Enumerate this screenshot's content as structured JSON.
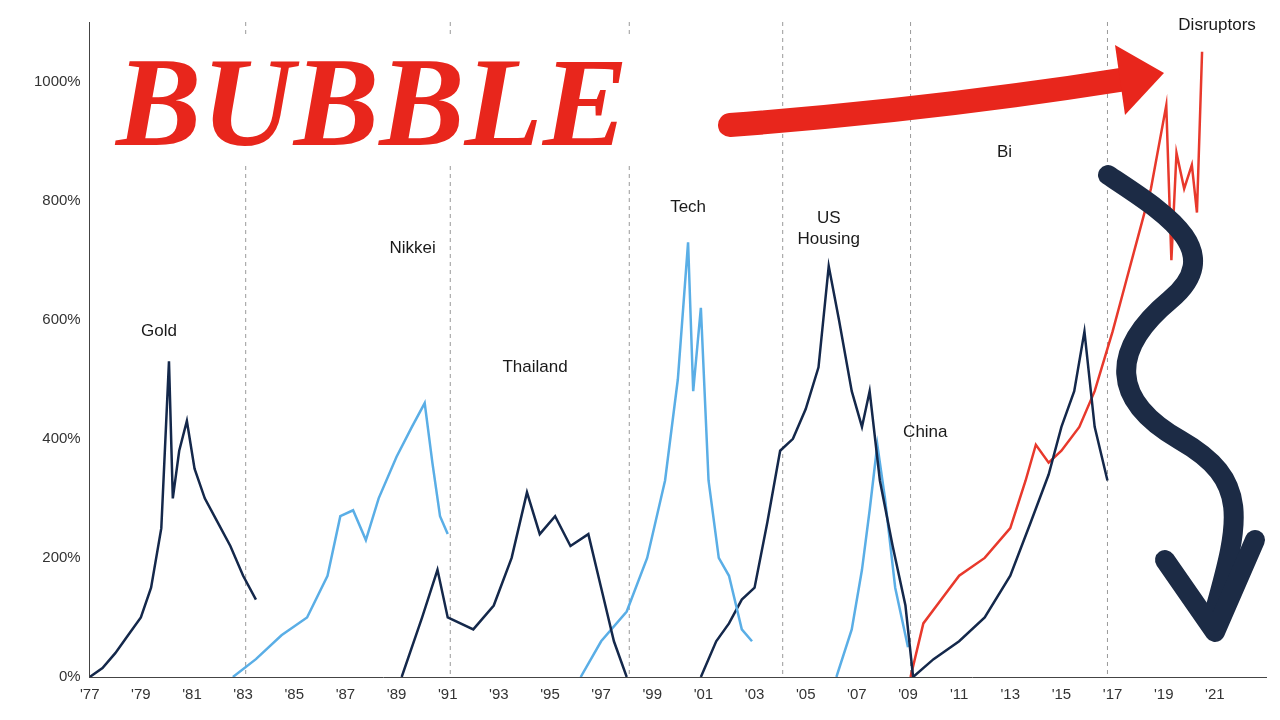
{
  "chart_data": {
    "type": "line",
    "annotations": [
      "BUBBLE"
    ],
    "xlim": [
      1977,
      2023
    ],
    "xticks": [
      {
        "value": 1977,
        "label": "'77"
      },
      {
        "value": 1979,
        "label": "'79"
      },
      {
        "value": 1981,
        "label": "'81"
      },
      {
        "value": 1983,
        "label": "'83"
      },
      {
        "value": 1985,
        "label": "'85"
      },
      {
        "value": 1987,
        "label": "'87"
      },
      {
        "value": 1989,
        "label": "'89"
      },
      {
        "value": 1991,
        "label": "'91"
      },
      {
        "value": 1993,
        "label": "'93"
      },
      {
        "value": 1995,
        "label": "'95"
      },
      {
        "value": 1997,
        "label": "'97"
      },
      {
        "value": 1999,
        "label": "'99"
      },
      {
        "value": 2001,
        "label": "'01"
      },
      {
        "value": 2003,
        "label": "'03"
      },
      {
        "value": 2005,
        "label": "'05"
      },
      {
        "value": 2007,
        "label": "'07"
      },
      {
        "value": 2009,
        "label": "'09"
      },
      {
        "value": 2011,
        "label": "'11"
      },
      {
        "value": 2013,
        "label": "'13"
      },
      {
        "value": 2015,
        "label": "'15"
      },
      {
        "value": 2017,
        "label": "'17"
      },
      {
        "value": 2019,
        "label": "'19"
      },
      {
        "value": 2021,
        "label": "'21"
      }
    ],
    "ylim": [
      0,
      1100
    ],
    "yticks": [
      {
        "value": 0,
        "label": "0%"
      },
      {
        "value": 200,
        "label": "200%"
      },
      {
        "value": 400,
        "label": "400%"
      },
      {
        "value": 600,
        "label": "600%"
      },
      {
        "value": 800,
        "label": "800%"
      },
      {
        "value": 1000,
        "label": "1000%"
      }
    ],
    "grid": false,
    "dividers": [
      1983.1,
      1991.1,
      1998.1,
      2004.1,
      2009.1,
      2016.8
    ],
    "series": [
      {
        "name": "Gold",
        "color": "#14284b",
        "x": [
          1977,
          1977.5,
          1978,
          1978.5,
          1979,
          1979.4,
          1979.8,
          1980.1,
          1980.25,
          1980.5,
          1980.8,
          1981.1,
          1981.5,
          1982,
          1982.5,
          1983,
          1983.5
        ],
        "values": [
          0,
          15,
          40,
          70,
          100,
          150,
          250,
          530,
          300,
          380,
          430,
          350,
          300,
          260,
          220,
          170,
          130
        ]
      },
      {
        "name": "Nikkei",
        "color": "#5aaee6",
        "x": [
          1982.6,
          1983.5,
          1984.5,
          1985.5,
          1986.3,
          1986.8,
          1987.3,
          1987.8,
          1988.3,
          1989,
          1989.6,
          1990.1,
          1990.4,
          1990.7,
          1991.0
        ],
        "values": [
          0,
          30,
          70,
          100,
          170,
          270,
          280,
          230,
          300,
          370,
          420,
          460,
          360,
          270,
          240
        ]
      },
      {
        "name": "Thailand",
        "color": "#14284b",
        "x": [
          1989.2,
          1990,
          1990.6,
          1991,
          1992,
          1992.8,
          1993.5,
          1994.1,
          1994.6,
          1995.2,
          1995.8,
          1996.5,
          1997,
          1997.5,
          1998
        ],
        "values": [
          0,
          100,
          180,
          100,
          80,
          120,
          200,
          310,
          240,
          270,
          220,
          240,
          150,
          60,
          0
        ]
      },
      {
        "name": "Tech",
        "color": "#5aaee6",
        "x": [
          1996.2,
          1997,
          1998,
          1998.8,
          1999.5,
          2000,
          2000.4,
          2000.6,
          2000.9,
          2001.2,
          2001.6,
          2002,
          2002.5,
          2002.9
        ],
        "values": [
          0,
          60,
          110,
          200,
          330,
          500,
          730,
          480,
          620,
          330,
          200,
          170,
          80,
          60
        ]
      },
      {
        "name": "US Housing",
        "color": "#14284b",
        "x": [
          2000.9,
          2001.5,
          2002,
          2002.5,
          2003,
          2003.5,
          2004,
          2004.5,
          2005,
          2005.5,
          2005.9,
          2006.3,
          2006.8,
          2007.2,
          2007.5,
          2007.9,
          2008.4,
          2008.9,
          2009.2
        ],
        "values": [
          0,
          60,
          90,
          130,
          150,
          260,
          380,
          400,
          450,
          520,
          690,
          600,
          480,
          420,
          480,
          330,
          220,
          120,
          0
        ]
      },
      {
        "name": "China",
        "color": "#5aaee6",
        "x": [
          2006.2,
          2006.8,
          2007.2,
          2007.5,
          2007.8,
          2008.1,
          2008.5,
          2009
        ],
        "values": [
          0,
          80,
          180,
          280,
          390,
          300,
          150,
          50
        ]
      },
      {
        "name": "Bi",
        "color": "#14284b",
        "x": [
          2009.2,
          2010,
          2011,
          2012,
          2013,
          2013.8,
          2014.5,
          2015,
          2015.5,
          2015.9,
          2016.3,
          2016.8
        ],
        "values": [
          0,
          30,
          60,
          100,
          170,
          260,
          340,
          420,
          480,
          580,
          420,
          330
        ]
      },
      {
        "name": "Disruptors",
        "color": "#e8392c",
        "x": [
          2009.1,
          2009.6,
          2010.3,
          2011,
          2012,
          2013,
          2013.6,
          2014,
          2014.5,
          2015,
          2015.7,
          2016.3,
          2017,
          2017.5,
          2018,
          2018.5,
          2019.1,
          2019.3,
          2019.5,
          2019.8,
          2020.1,
          2020.3,
          2020.5
        ],
        "values": [
          0,
          90,
          130,
          170,
          200,
          250,
          330,
          390,
          360,
          380,
          420,
          480,
          580,
          660,
          740,
          820,
          960,
          700,
          880,
          820,
          860,
          780,
          1050
        ]
      }
    ]
  }
}
